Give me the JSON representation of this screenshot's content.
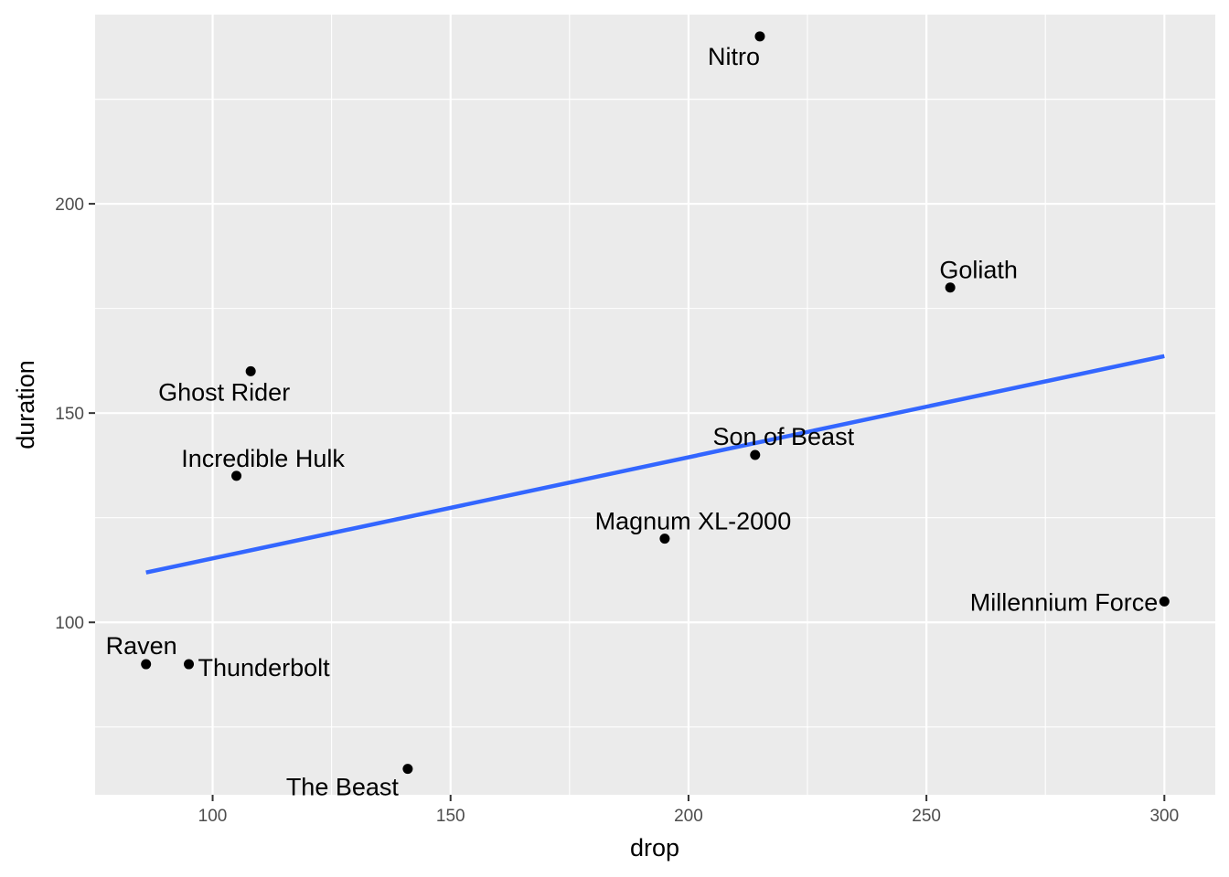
{
  "chart_data": {
    "type": "scatter",
    "xlabel": "drop",
    "ylabel": "duration",
    "xlim": [
      75.3,
      310.7
    ],
    "ylim": [
      58.8,
      245.2
    ],
    "x_ticks": [
      100,
      150,
      200,
      250,
      300
    ],
    "y_ticks": [
      100,
      150,
      200
    ],
    "x_tick_labels": [
      "100",
      "150",
      "200",
      "250",
      "300"
    ],
    "y_tick_labels": [
      "100",
      "150",
      "200"
    ],
    "grid": true,
    "legend": "none",
    "points": [
      {
        "name": "Nitro",
        "x": 215,
        "y": 240
      },
      {
        "name": "Goliath",
        "x": 255,
        "y": 180
      },
      {
        "name": "Ghost Rider",
        "x": 108,
        "y": 160
      },
      {
        "name": "Son of Beast",
        "x": 214,
        "y": 140
      },
      {
        "name": "Incredible Hulk",
        "x": 105,
        "y": 135
      },
      {
        "name": "Magnum XL-2000",
        "x": 195,
        "y": 120
      },
      {
        "name": "Millennium Force",
        "x": 300,
        "y": 105
      },
      {
        "name": "Raven",
        "x": 86,
        "y": 90
      },
      {
        "name": "Thunderbolt",
        "x": 95,
        "y": 90
      },
      {
        "name": "The Beast",
        "x": 141,
        "y": 65
      }
    ],
    "trend_line": {
      "method": "lm",
      "x": [
        86,
        300
      ],
      "y": [
        111.9,
        163.6
      ]
    },
    "colors": {
      "panel_background": "#ebebeb",
      "grid": "#ffffff",
      "points": "#000000",
      "trend_line": "#3366ff"
    }
  }
}
